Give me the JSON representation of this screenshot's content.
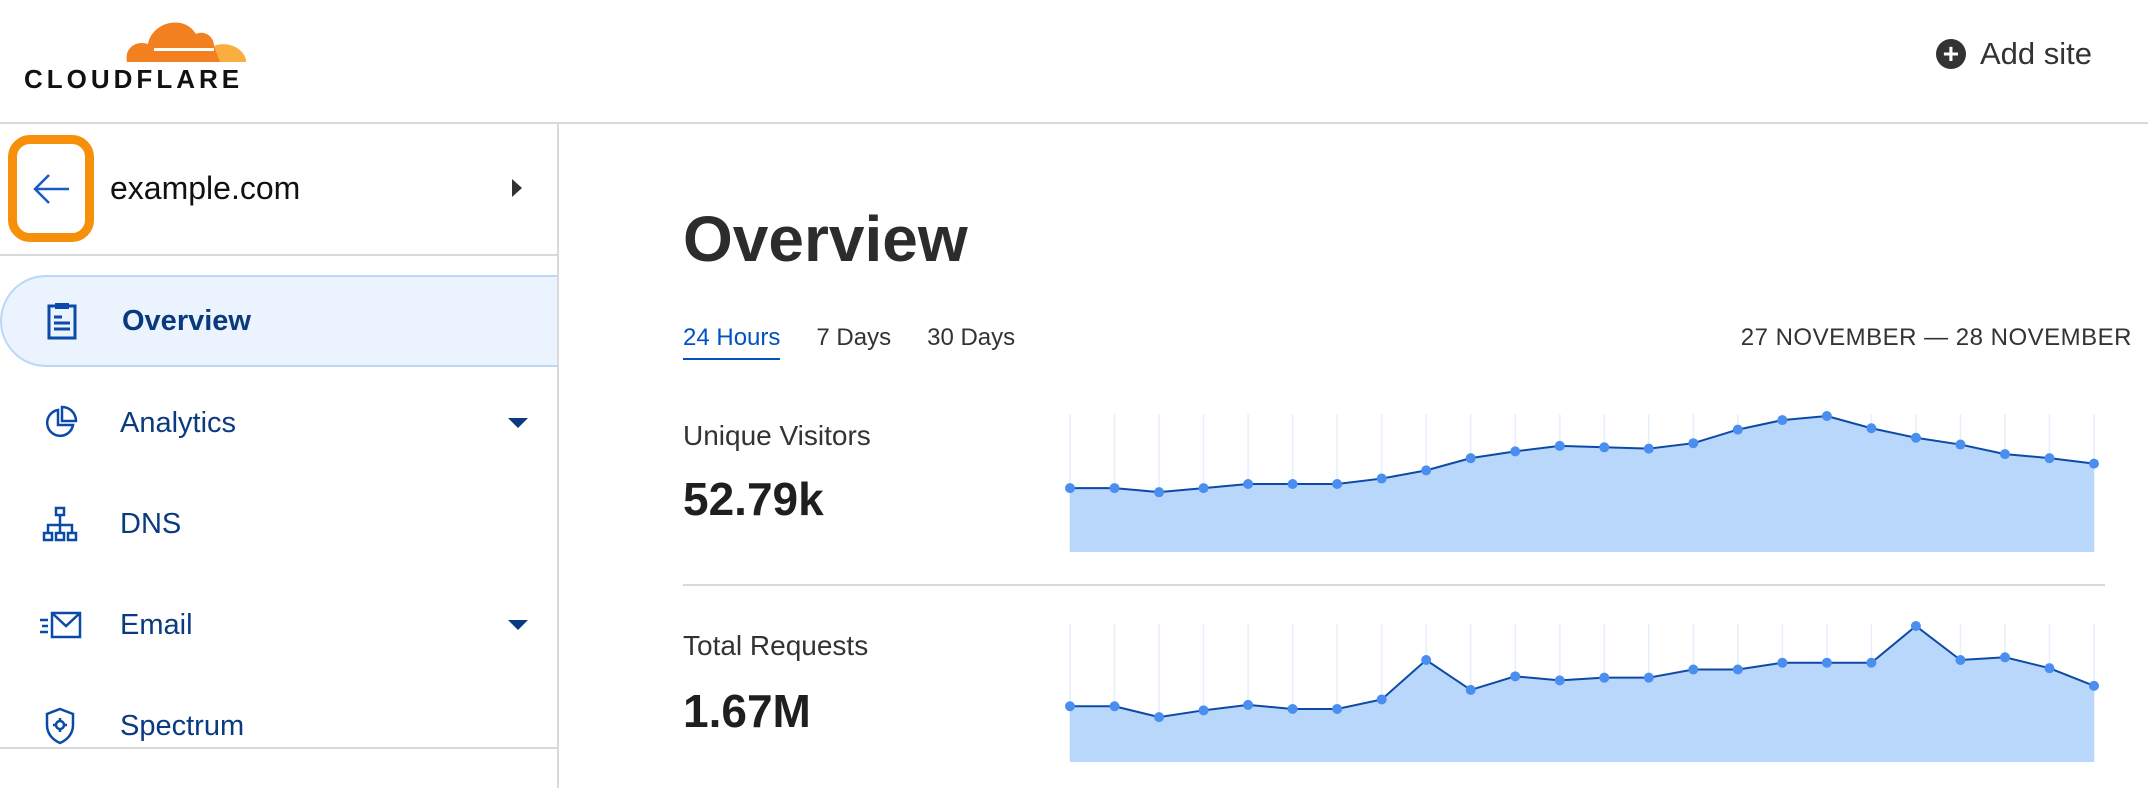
{
  "header": {
    "logo_text": "CLOUDFLARE",
    "add_site": "Add site"
  },
  "sidebar": {
    "zone": "example.com",
    "items": [
      {
        "label": "Overview",
        "icon": "clipboard-icon",
        "active": true
      },
      {
        "label": "Analytics",
        "icon": "pie-chart-icon",
        "dropdown": true
      },
      {
        "label": "DNS",
        "icon": "network-icon"
      },
      {
        "label": "Email",
        "icon": "email-icon",
        "dropdown": true
      },
      {
        "label": "Spectrum",
        "icon": "shield-icon"
      }
    ]
  },
  "main": {
    "title": "Overview",
    "tabs": [
      "24 Hours",
      "7 Days",
      "30 Days"
    ],
    "active_tab": "24 Hours",
    "date_range": "27 NOVEMBER — 28 NOVEMBER",
    "metrics": [
      {
        "label": "Unique Visitors",
        "value": "52.79k"
      },
      {
        "label": "Total Requests",
        "value": "1.67M"
      }
    ]
  },
  "colors": {
    "accent": "#0051c3",
    "highlight": "#f6900a",
    "area_fill": "#b9d6fb",
    "line": "#0c4aa6",
    "point": "#4a8ef0"
  },
  "chart_data": [
    {
      "type": "area",
      "series": [
        {
          "values": [
            47,
            47,
            44,
            47,
            50,
            50,
            50,
            54,
            60,
            69,
            74,
            78,
            77,
            76,
            80,
            90,
            97,
            100,
            91,
            84,
            79,
            72,
            69,
            65
          ]
        }
      ],
      "grid": "vertical"
    },
    {
      "type": "area",
      "series": [
        {
          "values": [
            41,
            41,
            33,
            38,
            42,
            39,
            39,
            46,
            75,
            53,
            63,
            60,
            62,
            62,
            68,
            68,
            73,
            73,
            73,
            100,
            75,
            77,
            69,
            56
          ]
        }
      ],
      "grid": "vertical"
    }
  ]
}
